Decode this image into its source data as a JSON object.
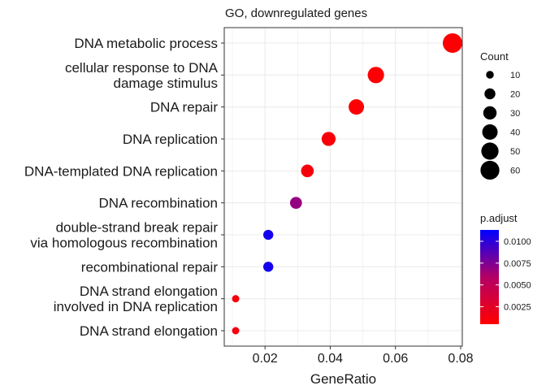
{
  "chart_data": {
    "type": "scatter",
    "title": "GO, downregulated genes",
    "xlabel": "GeneRatio",
    "ylabel": "",
    "xlim": [
      0.0075,
      0.0805
    ],
    "xticks": [
      0.02,
      0.04,
      0.06,
      0.08
    ],
    "xtick_labels": [
      "0.02",
      "0.04",
      "0.06",
      "0.08"
    ],
    "grid": true,
    "categories": [
      [
        "DNA metabolic process"
      ],
      [
        "cellular response to DNA",
        "damage stimulus"
      ],
      [
        "DNA repair"
      ],
      [
        "DNA replication"
      ],
      [
        "DNA-templated DNA replication"
      ],
      [
        "DNA recombination"
      ],
      [
        "double-strand break repair",
        "via homologous recombination"
      ],
      [
        "recombinational repair"
      ],
      [
        "DNA strand elongation",
        "involved in DNA replication"
      ],
      [
        "DNA strand elongation"
      ]
    ],
    "points": [
      {
        "x": 0.0775,
        "count": 64,
        "p_adjust": 0.0007
      },
      {
        "x": 0.054,
        "count": 45,
        "p_adjust": 0.0007
      },
      {
        "x": 0.048,
        "count": 40,
        "p_adjust": 0.0007
      },
      {
        "x": 0.0395,
        "count": 33,
        "p_adjust": 0.0009
      },
      {
        "x": 0.033,
        "count": 27,
        "p_adjust": 0.0012
      },
      {
        "x": 0.0295,
        "count": 24,
        "p_adjust": 0.0068
      },
      {
        "x": 0.021,
        "count": 17,
        "p_adjust": 0.0107
      },
      {
        "x": 0.021,
        "count": 17,
        "p_adjust": 0.0107
      },
      {
        "x": 0.011,
        "count": 9,
        "p_adjust": 0.0012
      },
      {
        "x": 0.011,
        "count": 9,
        "p_adjust": 0.0012
      }
    ],
    "size_legend": {
      "title": "Count",
      "values": [
        10,
        20,
        30,
        40,
        50,
        60
      ],
      "labels": [
        "10",
        "20",
        "30",
        "40",
        "50",
        "60"
      ]
    },
    "color_legend": {
      "title": "p.adjust",
      "min": 0.0005,
      "max": 0.0113,
      "ticks": [
        0.0025,
        0.005,
        0.0075,
        0.01
      ],
      "labels": [
        "0.0025",
        "0.0050",
        "0.0075",
        "0.0100"
      ],
      "low_color": "#ff0000",
      "high_color": "#0000ff"
    },
    "colors": {
      "grid": "#ebebeb",
      "axis": "#333333",
      "text": "#1a1a1a",
      "tick_text": "#4d4d4d"
    }
  }
}
